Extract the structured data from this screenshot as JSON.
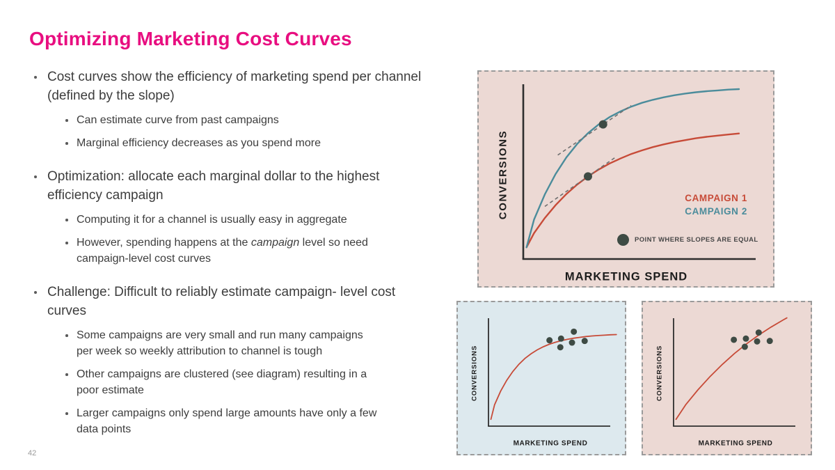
{
  "slide": {
    "title": "Optimizing Marketing Cost Curves",
    "page_number": "42"
  },
  "colors": {
    "title": "#e80e80",
    "text": "#3d3d3d",
    "campaign1": "#c74b38",
    "campaign2": "#4b8c9b",
    "marker_dot": "#3e4b44",
    "axis": "#2e2e2e",
    "tangent": "#707070",
    "main_chart_bg": "#ecd9d4",
    "blue_chart_bg": "#dde9ee",
    "page_number": "#9a9a9a"
  },
  "bullets": [
    {
      "text": "Cost curves show the efficiency of marketing spend per channel (defined by the slope)",
      "subs": [
        {
          "text": "Can estimate curve from past campaigns"
        },
        {
          "text": "Marginal efficiency decreases as you spend more"
        }
      ]
    },
    {
      "text": "Optimization: allocate each marginal dollar to the highest efficiency campaign",
      "subs": [
        {
          "text": "Computing it for a channel is usually easy in aggregate"
        },
        {
          "pre": "However, spending happens at the ",
          "italic": "campaign",
          "post": " level so need campaign-level cost curves"
        }
      ]
    },
    {
      "text": "Challenge: Difficult to reliably estimate campaign- level cost curves",
      "subs": [
        {
          "text": "Some campaigns are very small and run many campaigns per week so weekly attribution to channel is tough"
        },
        {
          "text": "Other campaigns are clustered (see diagram) resulting in a poor estimate"
        },
        {
          "text": "Larger campaigns only spend large amounts have only a few data points"
        }
      ]
    }
  ],
  "chart_data": [
    {
      "id": "main-chart",
      "type": "line",
      "xlabel": "MARKETING SPEND",
      "ylabel": "CONVERSIONS",
      "background": "#ecd9d4",
      "axes_numeric": false,
      "series": [
        {
          "name": "CAMPAIGN 1",
          "color": "#c74b38",
          "points": [
            [
              0.015,
              0.02
            ],
            [
              0.05,
              0.106
            ],
            [
              0.1,
              0.197
            ],
            [
              0.15,
              0.275
            ],
            [
              0.2,
              0.342
            ],
            [
              0.25,
              0.399
            ],
            [
              0.3,
              0.448
            ],
            [
              0.35,
              0.49
            ],
            [
              0.4,
              0.526
            ],
            [
              0.45,
              0.556
            ],
            [
              0.5,
              0.583
            ],
            [
              0.55,
              0.605
            ],
            [
              0.6,
              0.625
            ],
            [
              0.65,
              0.641
            ],
            [
              0.7,
              0.655
            ],
            [
              0.75,
              0.667
            ],
            [
              0.8,
              0.678
            ],
            [
              0.85,
              0.687
            ],
            [
              0.9,
              0.694
            ],
            [
              0.95,
              0.701
            ],
            [
              1,
              0.707
            ]
          ]
        },
        {
          "name": "CAMPAIGN 2",
          "color": "#4b8c9b",
          "points": [
            [
              0.015,
              0.02
            ],
            [
              0.05,
              0.188
            ],
            [
              0.1,
              0.34
            ],
            [
              0.15,
              0.463
            ],
            [
              0.2,
              0.563
            ],
            [
              0.25,
              0.644
            ],
            [
              0.3,
              0.709
            ],
            [
              0.35,
              0.762
            ],
            [
              0.4,
              0.806
            ],
            [
              0.45,
              0.84
            ],
            [
              0.5,
              0.869
            ],
            [
              0.55,
              0.892
            ],
            [
              0.6,
              0.91
            ],
            [
              0.65,
              0.925
            ],
            [
              0.7,
              0.938
            ],
            [
              0.75,
              0.948
            ],
            [
              0.8,
              0.956
            ],
            [
              0.85,
              0.962
            ],
            [
              0.9,
              0.967
            ],
            [
              0.95,
              0.972
            ],
            [
              1,
              0.975
            ]
          ]
        }
      ],
      "tangents": [
        {
          "at_series": "CAMPAIGN 2",
          "point": [
            0.37,
            0.762
          ],
          "line": [
            [
              0.16,
              0.577
            ],
            [
              0.5,
              0.876
            ]
          ]
        },
        {
          "at_series": "CAMPAIGN 1",
          "point": [
            0.3,
            0.448
          ],
          "line": [
            [
              0.1,
              0.267
            ],
            [
              0.43,
              0.566
            ]
          ]
        }
      ],
      "legend": {
        "entries": [
          {
            "label": "CAMPAIGN 1",
            "color": "#c74b38"
          },
          {
            "label": "CAMPAIGN 2",
            "color": "#4b8c9b"
          }
        ],
        "note": "POINT WHERE SLOPES ARE EQUAL"
      }
    },
    {
      "id": "cluster-chart-blue",
      "type": "scatter",
      "xlabel": "MARKETING SPEND",
      "ylabel": "CONVERSIONS",
      "background": "#dde9ee",
      "axes_numeric": false,
      "curve": {
        "color": "#c74b38",
        "points": [
          [
            0.02,
            0.02
          ],
          [
            0.05,
            0.17
          ],
          [
            0.1,
            0.309
          ],
          [
            0.15,
            0.421
          ],
          [
            0.2,
            0.511
          ],
          [
            0.25,
            0.585
          ],
          [
            0.3,
            0.645
          ],
          [
            0.35,
            0.693
          ],
          [
            0.4,
            0.732
          ],
          [
            0.45,
            0.764
          ],
          [
            0.5,
            0.79
          ],
          [
            0.55,
            0.811
          ],
          [
            0.6,
            0.828
          ],
          [
            0.65,
            0.841
          ],
          [
            0.7,
            0.852
          ],
          [
            0.75,
            0.861
          ],
          [
            0.8,
            0.869
          ],
          [
            0.85,
            0.875
          ],
          [
            0.9,
            0.879
          ],
          [
            0.95,
            0.883
          ],
          [
            1,
            0.887
          ],
          [
            1.05,
            0.889
          ]
        ]
      },
      "scatter": {
        "color": "#3e4b44",
        "points": [
          [
            0.501,
            0.831
          ],
          [
            0.596,
            0.848
          ],
          [
            0.701,
            0.919
          ],
          [
            0.686,
            0.807
          ],
          [
            0.79,
            0.824
          ],
          [
            0.59,
            0.759
          ]
        ]
      }
    },
    {
      "id": "cluster-chart-pink",
      "type": "scatter",
      "xlabel": "MARKETING SPEND",
      "ylabel": "CONVERSIONS",
      "background": "#ecd9d4",
      "axes_numeric": false,
      "curve": {
        "color": "#c74b38",
        "points": [
          [
            0.02,
            0.02
          ],
          [
            0.1,
            0.17
          ],
          [
            0.2,
            0.322
          ],
          [
            0.3,
            0.459
          ],
          [
            0.4,
            0.583
          ],
          [
            0.5,
            0.695
          ],
          [
            0.6,
            0.795
          ],
          [
            0.7,
            0.885
          ],
          [
            0.8,
            0.966
          ],
          [
            0.9,
            1.039
          ],
          [
            0.93,
            1.06
          ]
        ]
      },
      "scatter": {
        "color": "#3e4b44",
        "points": [
          [
            0.495,
            0.836
          ],
          [
            0.594,
            0.848
          ],
          [
            0.699,
            0.91
          ],
          [
            0.686,
            0.819
          ],
          [
            0.79,
            0.824
          ],
          [
            0.585,
            0.764
          ]
        ]
      }
    }
  ]
}
